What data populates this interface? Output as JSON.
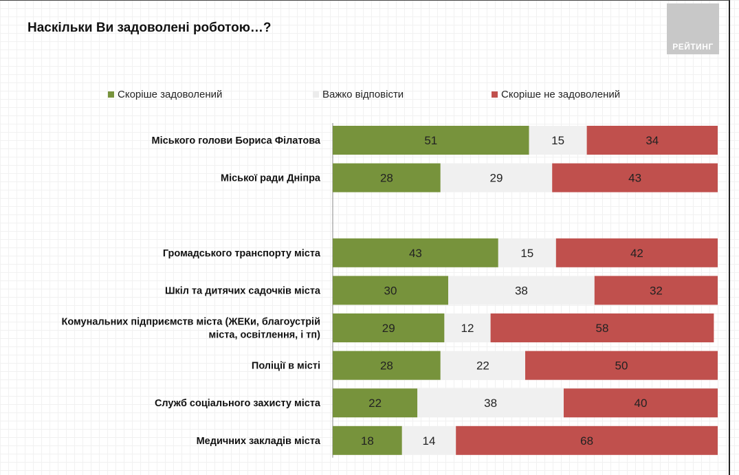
{
  "title": "Наскільки Ви задоволені роботою…?",
  "logo_text": "РЕЙТИНГ",
  "chart_data": {
    "type": "bar",
    "orientation": "horizontal",
    "stacked": true,
    "percent": true,
    "xlim": [
      0,
      100
    ],
    "legend_position": "top",
    "categories": [
      [
        "Міського голови Бориса Філатова"
      ],
      [
        "Міської ради Дніпра"
      ],
      [
        "Громадського транспорту міста"
      ],
      [
        "Шкіл та дитячих садочків міста"
      ],
      [
        "Комунальних підприємств  міста (ЖЕКи, благоустрій",
        "міста, освітлення, і тп)"
      ],
      [
        "Поліції в місті"
      ],
      [
        "Служб соціального захисту міста"
      ],
      [
        "Медичних закладів міста"
      ]
    ],
    "series": [
      {
        "name": "Скоріше задоволений",
        "color": "#77933c",
        "values": [
          51,
          28,
          43,
          30,
          29,
          28,
          22,
          18
        ]
      },
      {
        "name": "Важко відповісти",
        "color": "#f0f0f0",
        "values": [
          15,
          29,
          15,
          38,
          12,
          22,
          38,
          14
        ]
      },
      {
        "name": "Скоріше не задоволений",
        "color": "#c0504d",
        "values": [
          34,
          43,
          42,
          32,
          58,
          50,
          40,
          68
        ]
      }
    ]
  }
}
